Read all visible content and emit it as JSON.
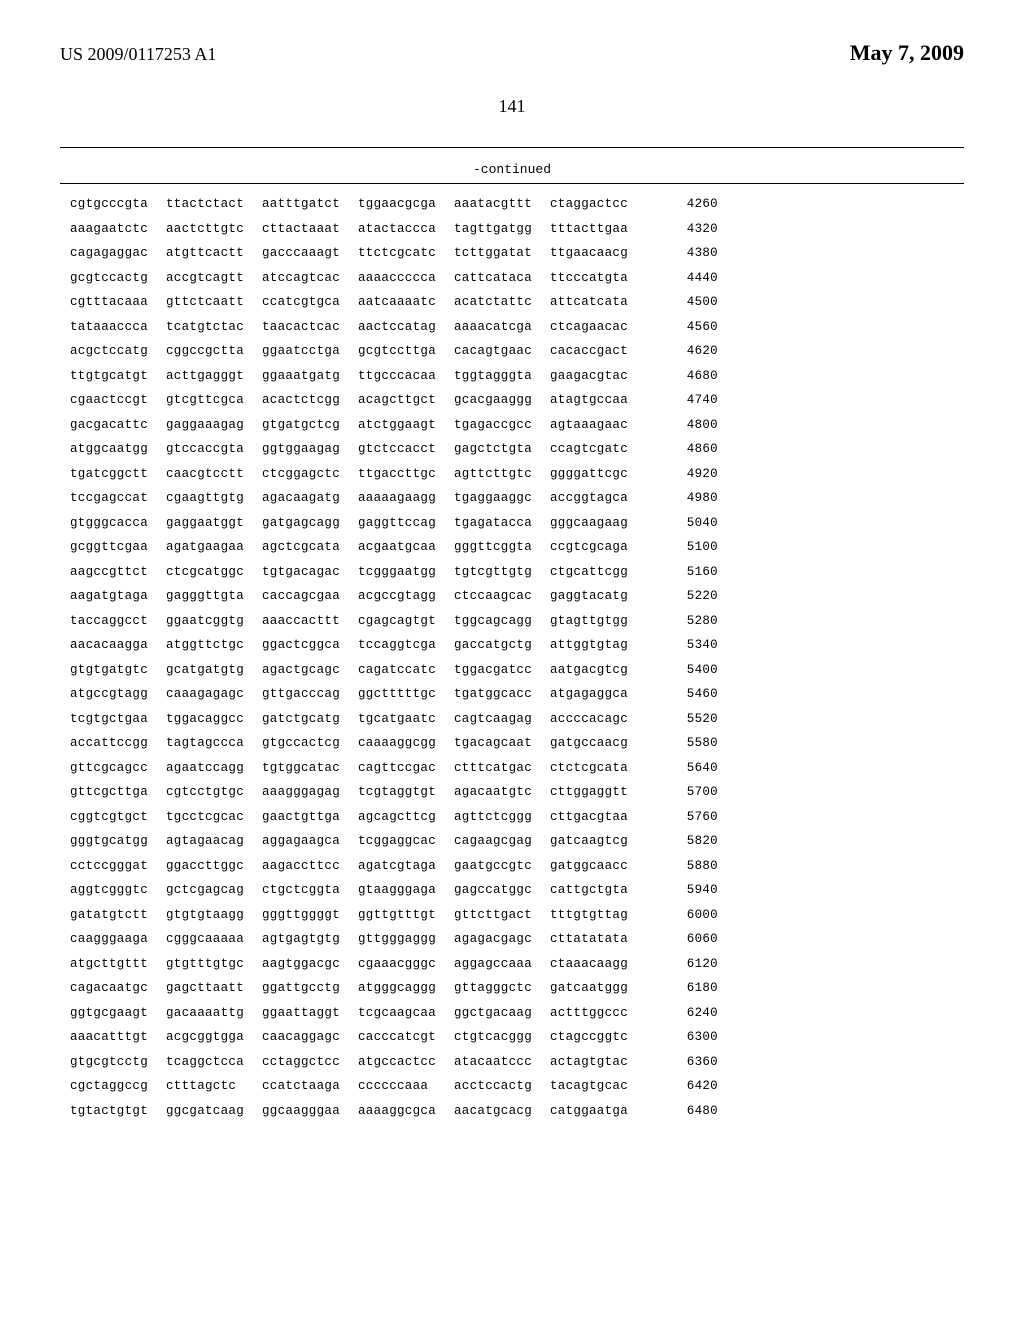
{
  "header": {
    "pub_number": "US 2009/0117253 A1",
    "pub_date": "May 7, 2009"
  },
  "page_number": "141",
  "continued_label": "-continued",
  "sequence_rows": [
    {
      "blocks": [
        "cgtgcccgta",
        "ttactctact",
        "aatttgatct",
        "tggaacgcga",
        "aaatacgttt",
        "ctaggactcc"
      ],
      "pos": "4260"
    },
    {
      "blocks": [
        "aaagaatctc",
        "aactcttgtc",
        "cttactaaat",
        "atactaccca",
        "tagttgatgg",
        "tttacttgaa"
      ],
      "pos": "4320"
    },
    {
      "blocks": [
        "cagagaggac",
        "atgttcactt",
        "gacccaaagt",
        "ttctcgcatc",
        "tcttggatat",
        "ttgaacaacg"
      ],
      "pos": "4380"
    },
    {
      "blocks": [
        "gcgtccactg",
        "accgtcagtt",
        "atccagtcac",
        "aaaaccccca",
        "cattcataca",
        "ttcccatgta"
      ],
      "pos": "4440"
    },
    {
      "blocks": [
        "cgtttacaaa",
        "gttctcaatt",
        "ccatcgtgca",
        "aatcaaaatc",
        "acatctattc",
        "attcatcata"
      ],
      "pos": "4500"
    },
    {
      "blocks": [
        "tataaaccca",
        "tcatgtctac",
        "taacactcac",
        "aactccatag",
        "aaaacatcga",
        "ctcagaacac"
      ],
      "pos": "4560"
    },
    {
      "blocks": [
        "acgctccatg",
        "cggccgctta",
        "ggaatcctga",
        "gcgtccttga",
        "cacagtgaac",
        "cacaccgact"
      ],
      "pos": "4620"
    },
    {
      "blocks": [
        "ttgtgcatgt",
        "acttgagggt",
        "ggaaatgatg",
        "ttgcccacaa",
        "tggtagggta",
        "gaagacgtac"
      ],
      "pos": "4680"
    },
    {
      "blocks": [
        "cgaactccgt",
        "gtcgttcgca",
        "acactctcgg",
        "acagcttgct",
        "gcacgaaggg",
        "atagtgccaa"
      ],
      "pos": "4740"
    },
    {
      "blocks": [
        "gacgacattc",
        "gaggaaagag",
        "gtgatgctcg",
        "atctggaagt",
        "tgagaccgcc",
        "agtaaagaac"
      ],
      "pos": "4800"
    },
    {
      "blocks": [
        "atggcaatgg",
        "gtccaccgta",
        "ggtggaagag",
        "gtctccacct",
        "gagctctgta",
        "ccagtcgatc"
      ],
      "pos": "4860"
    },
    {
      "blocks": [
        "tgatcggctt",
        "caacgtcctt",
        "ctcggagctc",
        "ttgaccttgc",
        "agttcttgtc",
        "ggggattcgc"
      ],
      "pos": "4920"
    },
    {
      "blocks": [
        "tccgagccat",
        "cgaagttgtg",
        "agacaagatg",
        "aaaaagaagg",
        "tgaggaaggc",
        "accggtagca"
      ],
      "pos": "4980"
    },
    {
      "blocks": [
        "gtgggcacca",
        "gaggaatggt",
        "gatgagcagg",
        "gaggttccag",
        "tgagatacca",
        "gggcaagaag"
      ],
      "pos": "5040"
    },
    {
      "blocks": [
        "gcggttcgaa",
        "agatgaagaa",
        "agctcgcata",
        "acgaatgcaa",
        "gggttcggta",
        "ccgtcgcaga"
      ],
      "pos": "5100"
    },
    {
      "blocks": [
        "aagccgttct",
        "ctcgcatggc",
        "tgtgacagac",
        "tcgggaatgg",
        "tgtcgttgtg",
        "ctgcattcgg"
      ],
      "pos": "5160"
    },
    {
      "blocks": [
        "aagatgtaga",
        "gagggttgta",
        "caccagcgaa",
        "acgccgtagg",
        "ctccaagcac",
        "gaggtacatg"
      ],
      "pos": "5220"
    },
    {
      "blocks": [
        "taccaggcct",
        "ggaatcggtg",
        "aaaccacttt",
        "cgagcagtgt",
        "tggcagcagg",
        "gtagttgtgg"
      ],
      "pos": "5280"
    },
    {
      "blocks": [
        "aacacaagga",
        "atggttctgc",
        "ggactcggca",
        "tccaggtcga",
        "gaccatgctg",
        "attggtgtag"
      ],
      "pos": "5340"
    },
    {
      "blocks": [
        "gtgtgatgtc",
        "gcatgatgtg",
        "agactgcagc",
        "cagatccatc",
        "tggacgatcc",
        "aatgacgtcg"
      ],
      "pos": "5400"
    },
    {
      "blocks": [
        "atgccgtagg",
        "caaagagagc",
        "gttgacccag",
        "ggctttttgc",
        "tgatggcacc",
        "atgagaggca"
      ],
      "pos": "5460"
    },
    {
      "blocks": [
        "tcgtgctgaa",
        "tggacaggcc",
        "gatctgcatg",
        "tgcatgaatc",
        "cagtcaagag",
        "accccacagc"
      ],
      "pos": "5520"
    },
    {
      "blocks": [
        "accattccgg",
        "tagtagccca",
        "gtgccactcg",
        "caaaaggcgg",
        "tgacagcaat",
        "gatgccaacg"
      ],
      "pos": "5580"
    },
    {
      "blocks": [
        "gttcgcagcc",
        "agaatccagg",
        "tgtggcatac",
        "cagttccgac",
        "ctttcatgac",
        "ctctcgcata"
      ],
      "pos": "5640"
    },
    {
      "blocks": [
        "gttcgcttga",
        "cgtcctgtgc",
        "aaagggagag",
        "tcgtaggtgt",
        "agacaatgtc",
        "cttggaggtt"
      ],
      "pos": "5700"
    },
    {
      "blocks": [
        "cggtcgtgct",
        "tgcctcgcac",
        "gaactgttga",
        "agcagcttcg",
        "agttctcggg",
        "cttgacgtaa"
      ],
      "pos": "5760"
    },
    {
      "blocks": [
        "gggtgcatgg",
        "agtagaacag",
        "aggagaagca",
        "tcggaggcac",
        "cagaagcgag",
        "gatcaagtcg"
      ],
      "pos": "5820"
    },
    {
      "blocks": [
        "cctccgggat",
        "ggaccttggc",
        "aagaccttcc",
        "agatcgtaga",
        "gaatgccgtc",
        "gatggcaacc"
      ],
      "pos": "5880"
    },
    {
      "blocks": [
        "aggtcgggtc",
        "gctcgagcag",
        "ctgctcggta",
        "gtaagggaga",
        "gagccatggc",
        "cattgctgta"
      ],
      "pos": "5940"
    },
    {
      "blocks": [
        "gatatgtctt",
        "gtgtgtaagg",
        "gggttggggt",
        "ggttgtttgt",
        "gttcttgact",
        "tttgtgttag"
      ],
      "pos": "6000"
    },
    {
      "blocks": [
        "caagggaaga",
        "cgggcaaaaa",
        "agtgagtgtg",
        "gttgggaggg",
        "agagacgagc",
        "cttatatata"
      ],
      "pos": "6060"
    },
    {
      "blocks": [
        "atgcttgttt",
        "gtgtttgtgc",
        "aagtggacgc",
        "cgaaacgggc",
        "aggagccaaa",
        "ctaaacaagg"
      ],
      "pos": "6120"
    },
    {
      "blocks": [
        "cagacaatgc",
        "gagcttaatt",
        "ggattgcctg",
        "atgggcaggg",
        "gttagggctc",
        "gatcaatggg"
      ],
      "pos": "6180"
    },
    {
      "blocks": [
        "ggtgcgaagt",
        "gacaaaattg",
        "ggaattaggt",
        "tcgcaagcaa",
        "ggctgacaag",
        "actttggccc"
      ],
      "pos": "6240"
    },
    {
      "blocks": [
        "aaacatttgt",
        "acgcggtgga",
        "caacaggagc",
        "cacccatcgt",
        "ctgtcacggg",
        "ctagccggtc"
      ],
      "pos": "6300"
    },
    {
      "blocks": [
        "gtgcgtcctg",
        "tcaggctcca",
        "cctaggctcc",
        "atgccactcc",
        "atacaatccc",
        "actagtgtac"
      ],
      "pos": "6360"
    },
    {
      "blocks": [
        "cgctaggccg",
        "ctttagctc",
        "ccatctaaga",
        "ccccccaaa",
        "acctccactg",
        "tacagtgcac"
      ],
      "pos": "6420"
    },
    {
      "blocks": [
        "tgtactgtgt",
        "ggcgatcaag",
        "ggcaagggaa",
        "aaaaggcgca",
        "aacatgcacg",
        "catggaatga"
      ],
      "pos": "6480"
    }
  ]
}
